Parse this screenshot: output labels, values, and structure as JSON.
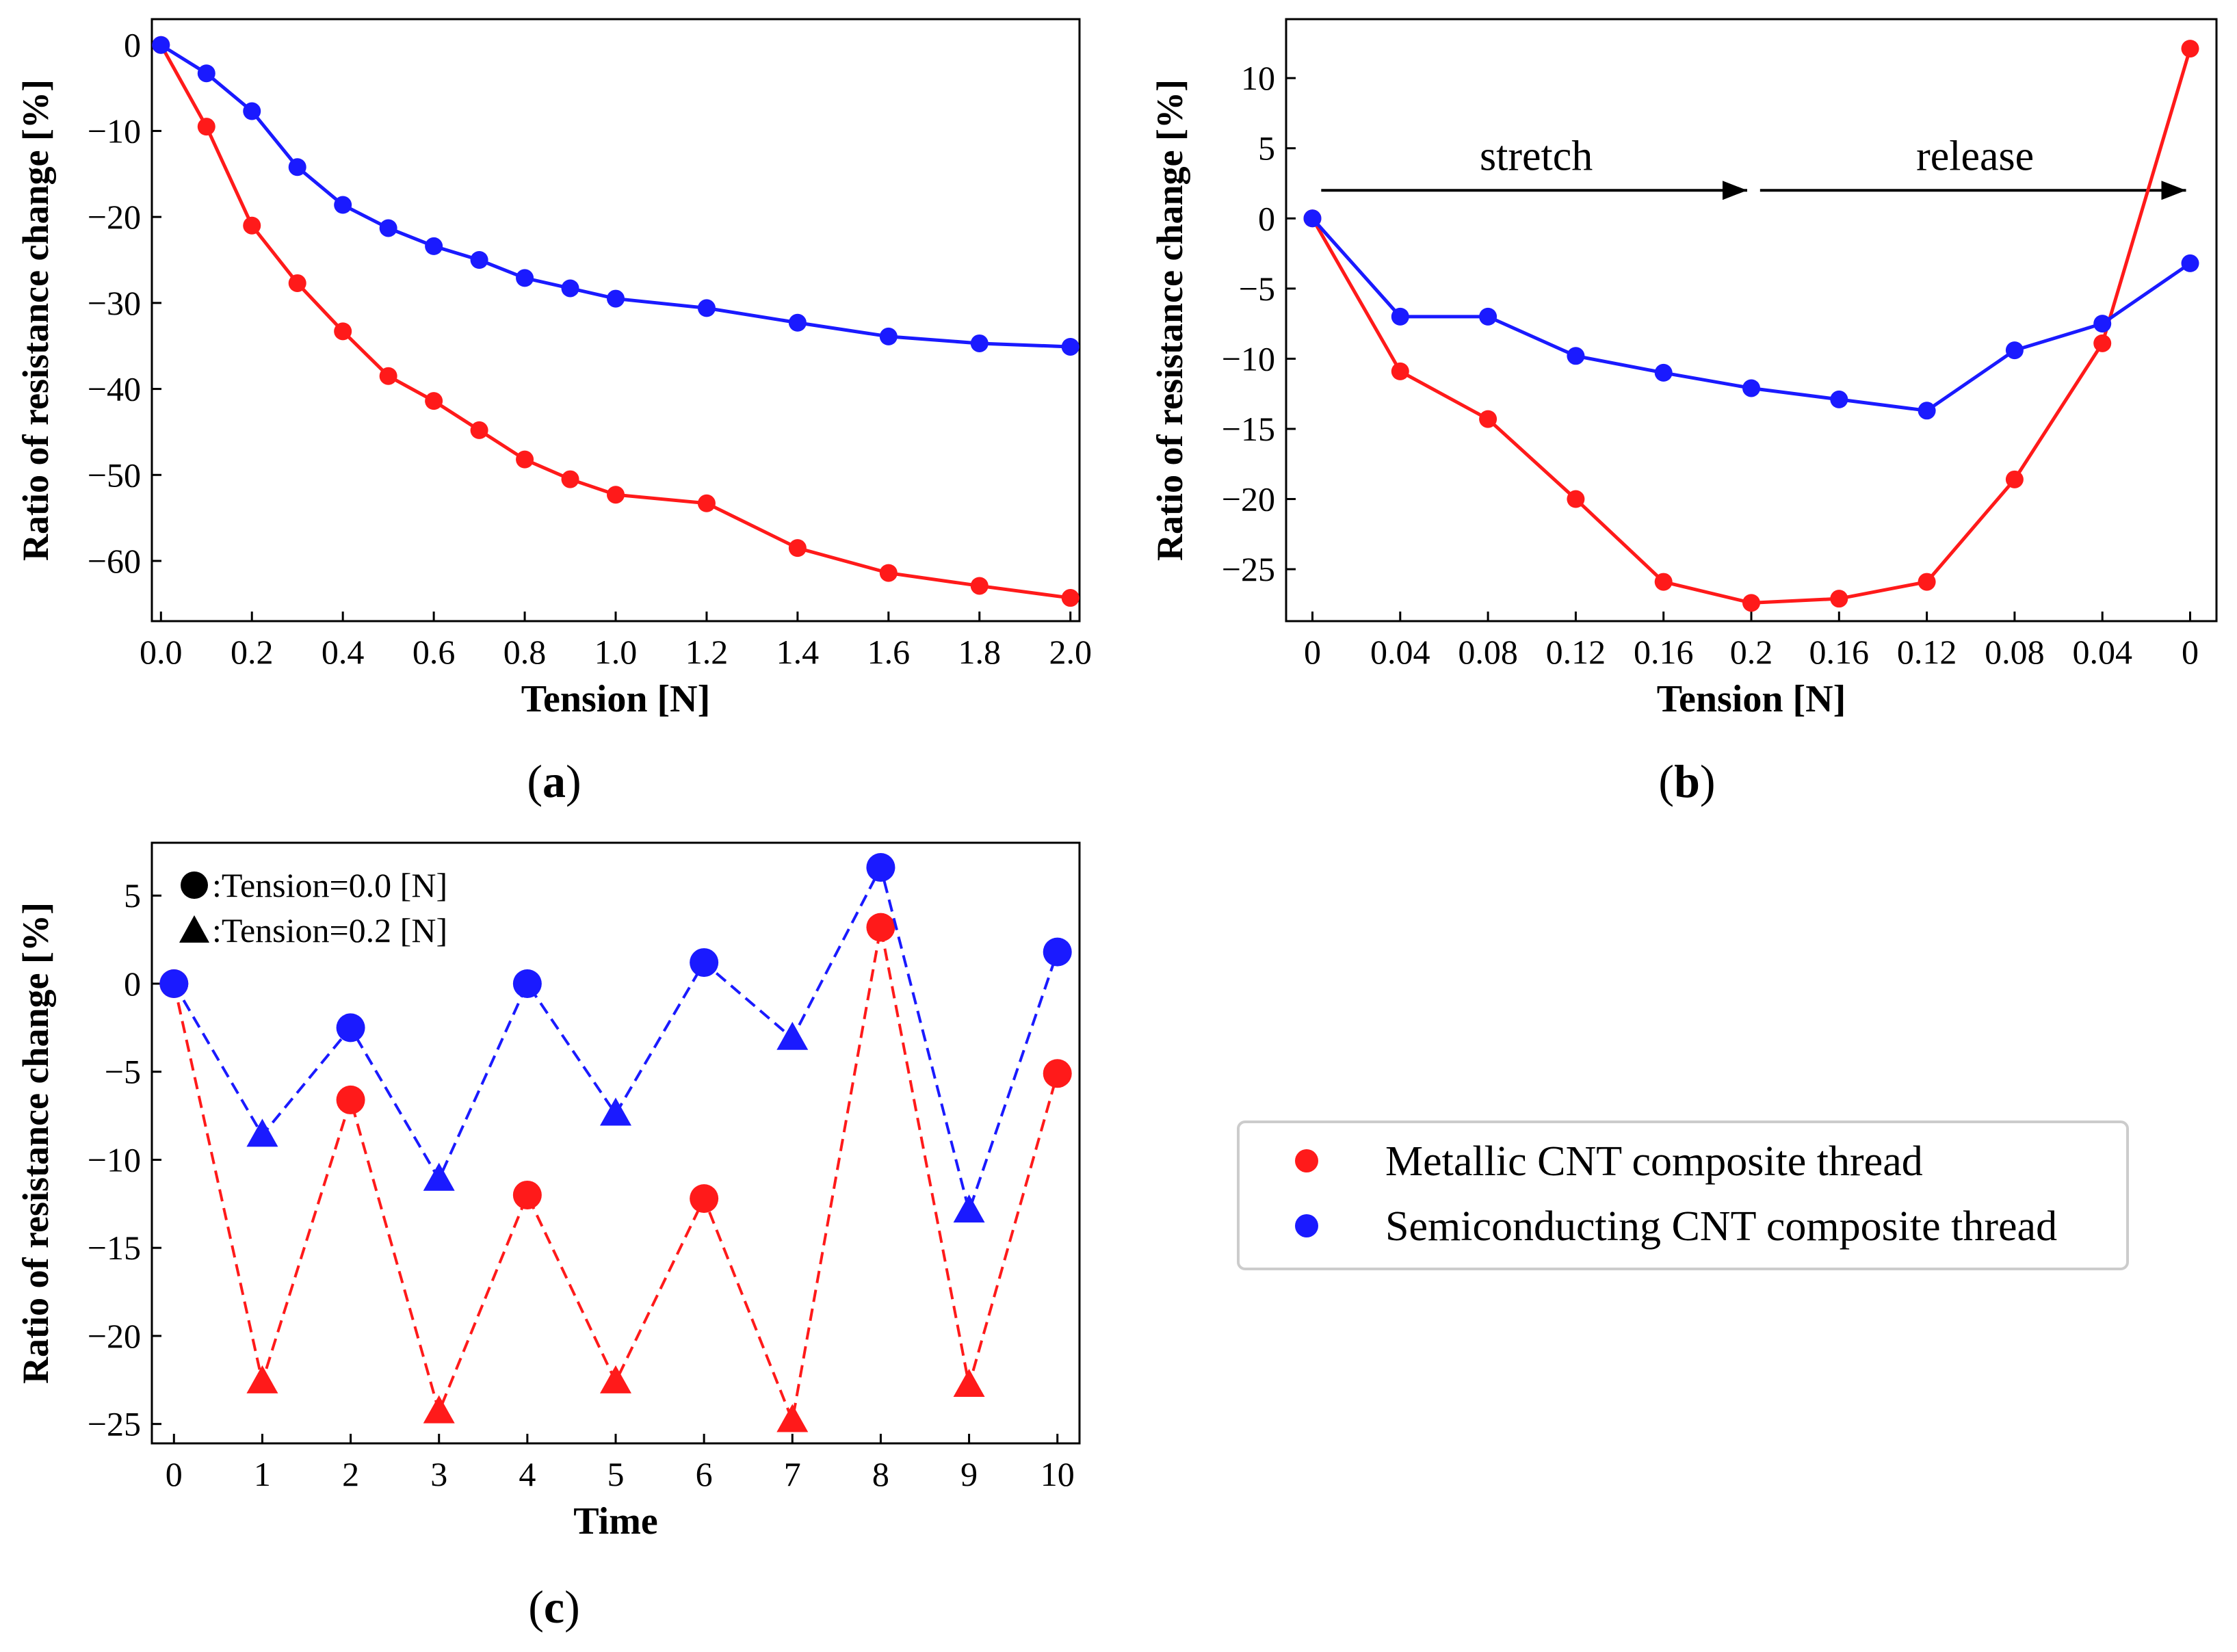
{
  "colors": {
    "metallic": "#ff1a1a",
    "semiconducting": "#1a1aff",
    "axis": "#000000"
  },
  "legend": {
    "metallic": "Metallic CNT composite thread",
    "semiconducting": "Semiconducting CNT composite thread"
  },
  "chart_data": [
    {
      "id": "a",
      "type": "line",
      "caption_letter": "a",
      "xlabel": "Tension [N]",
      "ylabel": "Ratio of resistance change [%]",
      "xlim": [
        -0.02,
        2.02
      ],
      "ylim": [
        -67,
        3
      ],
      "xticks": [
        0.0,
        0.2,
        0.4,
        0.6,
        0.8,
        1.0,
        1.2,
        1.4,
        1.6,
        1.8,
        2.0
      ],
      "xtick_labels": [
        "0.0",
        "0.2",
        "0.4",
        "0.6",
        "0.8",
        "1.0",
        "1.2",
        "1.4",
        "1.6",
        "1.8",
        "2.0"
      ],
      "yticks": [
        0,
        -10,
        -20,
        -30,
        -40,
        -50,
        -60
      ],
      "ytick_labels": [
        "0",
        "−10",
        "−20",
        "−30",
        "−40",
        "−50",
        "−60"
      ],
      "x": [
        0.0,
        0.1,
        0.2,
        0.3,
        0.4,
        0.5,
        0.6,
        0.7,
        0.8,
        0.9,
        1.0,
        1.2,
        1.4,
        1.6,
        1.8,
        2.0
      ],
      "series": [
        {
          "name": "Metallic CNT composite thread",
          "color_key": "metallic",
          "values": [
            0,
            -9.5,
            -21,
            -27.7,
            -33.3,
            -38.5,
            -41.4,
            -44.8,
            -48.2,
            -50.5,
            -52.3,
            -53.3,
            -58.5,
            -61.4,
            -62.9,
            -64.3
          ]
        },
        {
          "name": "Semiconducting CNT composite thread",
          "color_key": "semiconducting",
          "values": [
            0,
            -3.3,
            -7.7,
            -14.2,
            -18.6,
            -21.3,
            -23.4,
            -25.0,
            -27.1,
            -28.3,
            -29.5,
            -30.6,
            -32.3,
            -33.9,
            -34.7,
            -35.1
          ]
        }
      ]
    },
    {
      "id": "b",
      "type": "line",
      "caption_letter": "b",
      "xlabel": "Tension [N]",
      "ylabel": "Ratio of resistance change [%]",
      "xlim": [
        -0.3,
        10.3
      ],
      "ylim": [
        -28.7,
        14.2
      ],
      "xticks": [
        0,
        1,
        2,
        3,
        4,
        5,
        6,
        7,
        8,
        9,
        10
      ],
      "xtick_labels": [
        "0",
        "0.04",
        "0.08",
        "0.12",
        "0.16",
        "0.2",
        "0.16",
        "0.12",
        "0.08",
        "0.04",
        "0"
      ],
      "yticks": [
        10,
        5,
        0,
        -5,
        -10,
        -15,
        -20,
        -25
      ],
      "ytick_labels": [
        "10",
        "5",
        "0",
        "−5",
        "−10",
        "−15",
        "−20",
        "−25"
      ],
      "x": [
        0,
        1,
        2,
        3,
        4,
        5,
        6,
        7,
        8,
        9,
        10
      ],
      "annotations": [
        {
          "text": "stretch",
          "arrow_from": [
            0.1,
            2
          ],
          "arrow_to": [
            5.0,
            2
          ]
        },
        {
          "text": "release",
          "arrow_from": [
            5.1,
            2
          ],
          "arrow_to": [
            10.0,
            2
          ]
        }
      ],
      "series": [
        {
          "name": "Metallic CNT composite thread",
          "color_key": "metallic",
          "values": [
            0,
            -10.9,
            -14.3,
            -20.0,
            -25.9,
            -27.4,
            -27.1,
            -25.9,
            -18.6,
            -8.9,
            12.1
          ]
        },
        {
          "name": "Semiconducting CNT composite thread",
          "color_key": "semiconducting",
          "values": [
            0,
            -7.0,
            -7.0,
            -9.8,
            -11.0,
            -12.1,
            -12.9,
            -13.7,
            -9.4,
            -7.5,
            -3.2
          ]
        }
      ]
    },
    {
      "id": "c",
      "type": "scatter",
      "caption_letter": "c",
      "xlabel": "Time",
      "ylabel": "Ratio of resistance change [%]",
      "xlim": [
        -0.25,
        10.25
      ],
      "ylim": [
        -26.1,
        8.0
      ],
      "xticks": [
        0,
        1,
        2,
        3,
        4,
        5,
        6,
        7,
        8,
        9,
        10
      ],
      "xtick_labels": [
        "0",
        "1",
        "2",
        "3",
        "4",
        "5",
        "6",
        "7",
        "8",
        "9",
        "10"
      ],
      "yticks": [
        5,
        0,
        -5,
        -10,
        -15,
        -20,
        -25
      ],
      "ytick_labels": [
        "5",
        "0",
        "−5",
        "−10",
        "−15",
        "−20",
        "−25"
      ],
      "x": [
        0,
        1,
        2,
        3,
        4,
        5,
        6,
        7,
        8,
        9,
        10
      ],
      "markers": [
        "circle",
        "triangle",
        "circle",
        "triangle",
        "circle",
        "triangle",
        "circle",
        "triangle",
        "circle",
        "triangle",
        "circle"
      ],
      "marker_legend": [
        {
          "marker": "circle",
          "text": ":Tension=0.0 [N]"
        },
        {
          "marker": "triangle",
          "text": ":Tension=0.2 [N]"
        }
      ],
      "series": [
        {
          "name": "Metallic CNT composite thread",
          "color_key": "metallic",
          "values": [
            0,
            -22.6,
            -6.6,
            -24.3,
            -12.0,
            -22.6,
            -12.2,
            -24.8,
            3.2,
            -22.8,
            -5.1
          ]
        },
        {
          "name": "Semiconducting CNT composite thread",
          "color_key": "semiconducting",
          "values": [
            0,
            -8.6,
            -2.5,
            -11.1,
            0,
            -7.4,
            1.2,
            -3.1,
            6.6,
            -12.9,
            1.8
          ]
        }
      ]
    }
  ]
}
